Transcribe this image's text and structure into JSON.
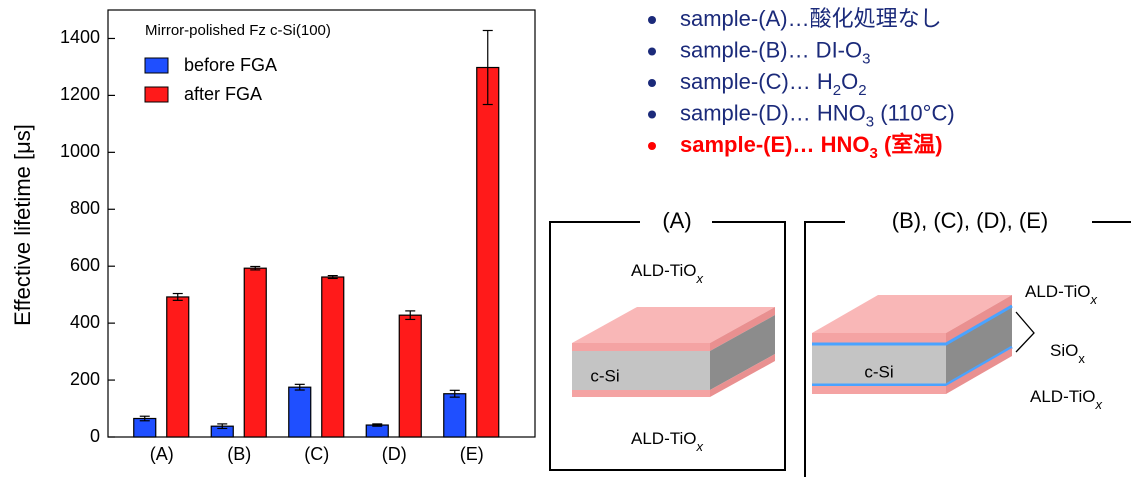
{
  "chart_data": {
    "type": "bar",
    "annotation": "Mirror-polished Fz c-Si(100)",
    "y_label": "Effective lifetime [μs]",
    "categories": [
      "(A)",
      "(B)",
      "(C)",
      "(D)",
      "(E)"
    ],
    "series": [
      {
        "name": "before FGA",
        "color": "#1f4fff",
        "values": [
          65,
          38,
          175,
          42,
          152
        ],
        "errors": [
          8,
          8,
          10,
          4,
          12
        ]
      },
      {
        "name": "after FGA",
        "color": "#ff1a1a",
        "values": [
          492,
          593,
          562,
          428,
          1298
        ],
        "errors": [
          12,
          6,
          5,
          15,
          130
        ]
      }
    ],
    "ylim": [
      0,
      1500
    ],
    "yticks": [
      0,
      200,
      400,
      600,
      800,
      1000,
      1200,
      1400
    ],
    "legend": "upper left"
  },
  "sample_list": [
    {
      "color": "#1b2a7a",
      "bold": false,
      "segments": [
        {
          "text": "sample-(A)…酸化処理なし"
        }
      ]
    },
    {
      "color": "#1b2a7a",
      "bold": false,
      "segments": [
        {
          "text": "sample-(B)… DI-O"
        },
        {
          "sub": "3"
        }
      ]
    },
    {
      "color": "#1b2a7a",
      "bold": false,
      "segments": [
        {
          "text": "sample-(C)… H"
        },
        {
          "sub": "2"
        },
        {
          "text": "O"
        },
        {
          "sub": "2"
        }
      ]
    },
    {
      "color": "#1b2a7a",
      "bold": false,
      "segments": [
        {
          "text": "sample-(D)… HNO"
        },
        {
          "sub": "3"
        },
        {
          "text": " (110°C)"
        }
      ]
    },
    {
      "color": "#ff0000",
      "bold": true,
      "segments": [
        {
          "text": "sample-(E)… HNO"
        },
        {
          "sub": "3"
        },
        {
          "text": " (室温)"
        }
      ]
    }
  ],
  "diagrams": [
    {
      "title": "(A)",
      "labels": [
        {
          "text": "ALD-TiO",
          "sub": "x"
        },
        {
          "text": "c-Si"
        },
        {
          "text": "ALD-TiO",
          "sub": "x"
        }
      ]
    },
    {
      "title": "(B), (C), (D), (E)",
      "labels": [
        {
          "text": "ALD-TiO",
          "sub": "x"
        },
        {
          "text": "SiO",
          "sub": "x"
        },
        {
          "text": "c-Si"
        },
        {
          "text": "ALD-TiO",
          "sub": "x"
        }
      ]
    }
  ]
}
